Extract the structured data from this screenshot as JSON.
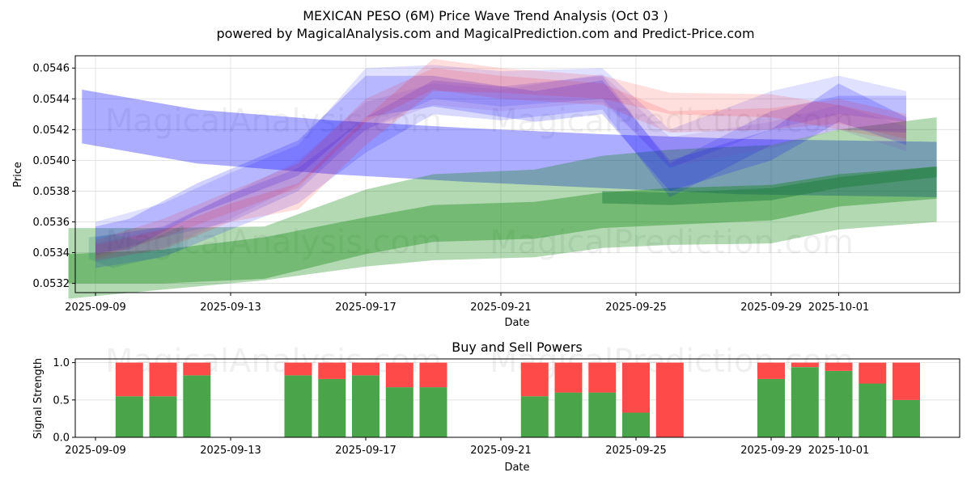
{
  "chart_data": [
    {
      "type": "area",
      "title": "MEXICAN PESO (6M) Price Wave Trend Analysis (Oct 03 )",
      "subtitle": "powered by MagicalAnalysis.com and MagicalPrediction.com and Predict-Price.com",
      "xlabel": "Date",
      "ylabel": "Price",
      "ylim": [
        0.05314,
        0.05468
      ],
      "x_ticks": [
        "2025-09-09",
        "2025-09-13",
        "2025-09-17",
        "2025-09-21",
        "2025-09-25",
        "2025-09-29",
        "2025-10-01"
      ],
      "y_ticks": [
        "0.0532",
        "0.0534",
        "0.0536",
        "0.0538",
        "0.0540",
        "0.0542",
        "0.0544",
        "0.0546"
      ],
      "grid": true,
      "watermarks": [
        "MagicalAnalysis.com",
        "MagicalPrediction.com"
      ],
      "bands": [
        {
          "name": "long-term-blue-band",
          "color": "#0000ff",
          "opacity": 0.32,
          "x": [
            "2025-09-08.6",
            "2025-09-12",
            "2025-09-16",
            "2025-09-20",
            "2025-09-24",
            "2025-09-28",
            "2025-10-03.9"
          ],
          "upper": [
            0.05446,
            0.05433,
            0.05426,
            0.05421,
            0.05417,
            0.05414,
            0.05412
          ],
          "lower": [
            0.05411,
            0.05398,
            0.05391,
            0.05386,
            0.05382,
            0.05378,
            0.05376
          ]
        },
        {
          "name": "outer-green-band",
          "color": "#008000",
          "opacity": 0.3,
          "x": [
            "2025-09-08.2",
            "2025-09-11",
            "2025-09-14",
            "2025-09-17",
            "2025-09-19",
            "2025-09-22",
            "2025-09-24",
            "2025-09-26",
            "2025-09-29",
            "2025-10-01",
            "2025-10-03.9"
          ],
          "upper": [
            0.05356,
            0.05356,
            0.05357,
            0.05381,
            0.05391,
            0.05394,
            0.05403,
            0.05407,
            0.0541,
            0.0542,
            0.05428
          ],
          "lower": [
            0.0531,
            0.05316,
            0.05322,
            0.05331,
            0.05335,
            0.05337,
            0.05343,
            0.05345,
            0.05346,
            0.05355,
            0.0536
          ]
        },
        {
          "name": "inner-green-band",
          "color": "#008000",
          "opacity": 0.35,
          "x": [
            "2025-09-08.2",
            "2025-09-11",
            "2025-09-14",
            "2025-09-17",
            "2025-09-19",
            "2025-09-22",
            "2025-09-24",
            "2025-09-26",
            "2025-09-29",
            "2025-10-01",
            "2025-10-03.9"
          ],
          "upper": [
            0.05339,
            0.05342,
            0.0535,
            0.05363,
            0.05371,
            0.05373,
            0.05379,
            0.05382,
            0.05384,
            0.05391,
            0.05396
          ],
          "lower": [
            0.0532,
            0.0532,
            0.05323,
            0.05339,
            0.05347,
            0.05349,
            0.05356,
            0.05358,
            0.05361,
            0.0537,
            0.05375
          ]
        },
        {
          "name": "dark-green-core-band",
          "color": "#1a7a3a",
          "opacity": 0.45,
          "x": [
            "2025-09-24",
            "2025-09-26",
            "2025-09-29",
            "2025-10-01",
            "2025-10-03.9"
          ],
          "upper": [
            0.0538,
            0.05379,
            0.05382,
            0.05389,
            0.05396
          ],
          "lower": [
            0.05372,
            0.05371,
            0.05374,
            0.05382,
            0.05389
          ]
        },
        {
          "name": "blue-wave-1",
          "color": "#0000ff",
          "opacity": 0.18,
          "x": [
            "2025-09-09",
            "2025-09-10",
            "2025-09-12",
            "2025-09-15",
            "2025-09-17",
            "2025-09-19",
            "2025-09-22",
            "2025-09-24",
            "2025-09-26",
            "2025-09-29",
            "2025-10-01",
            "2025-10-03"
          ],
          "upper": [
            0.05357,
            0.05362,
            0.05385,
            0.05413,
            0.05455,
            0.05455,
            0.05445,
            0.05452,
            0.054,
            0.0542,
            0.0545,
            0.05428
          ],
          "lower": [
            0.0534,
            0.05342,
            0.05365,
            0.0539,
            0.05428,
            0.05435,
            0.05425,
            0.0543,
            0.0538,
            0.054,
            0.05425,
            0.0541
          ]
        },
        {
          "name": "blue-wave-2",
          "color": "#0000ff",
          "opacity": 0.15,
          "x": [
            "2025-09-09",
            "2025-09-11",
            "2025-09-13",
            "2025-09-15",
            "2025-09-17",
            "2025-09-19",
            "2025-09-21",
            "2025-09-24",
            "2025-09-26",
            "2025-09-29",
            "2025-10-01",
            "2025-10-03"
          ],
          "upper": [
            0.0535,
            0.05357,
            0.05378,
            0.05395,
            0.05428,
            0.05452,
            0.05448,
            0.05455,
            0.05398,
            0.05432,
            0.05442,
            0.05442
          ],
          "lower": [
            0.0533,
            0.05337,
            0.05355,
            0.05372,
            0.05405,
            0.0543,
            0.05426,
            0.05433,
            0.05376,
            0.0541,
            0.0542,
            0.05418
          ]
        },
        {
          "name": "blue-wave-3",
          "color": "#0000ff",
          "opacity": 0.12,
          "x": [
            "2025-09-09",
            "2025-09-11",
            "2025-09-13",
            "2025-09-15",
            "2025-09-17",
            "2025-09-19",
            "2025-09-21",
            "2025-09-24",
            "2025-09-26",
            "2025-09-29",
            "2025-10-01",
            "2025-10-03"
          ],
          "upper": [
            0.0536,
            0.05372,
            0.05392,
            0.0541,
            0.0546,
            0.05462,
            0.05458,
            0.0546,
            0.0542,
            0.05445,
            0.05455,
            0.05445
          ],
          "lower": [
            0.05338,
            0.0535,
            0.0536,
            0.0538,
            0.0542,
            0.0544,
            0.05435,
            0.0544,
            0.05395,
            0.0542,
            0.0543,
            0.05425
          ]
        },
        {
          "name": "red-wave-1",
          "color": "#ff0000",
          "opacity": 0.13,
          "x": [
            "2025-09-09",
            "2025-09-11",
            "2025-09-13",
            "2025-09-15",
            "2025-09-17",
            "2025-09-19",
            "2025-09-21",
            "2025-09-24",
            "2025-09-26",
            "2025-09-29",
            "2025-10-01",
            "2025-10-03"
          ],
          "upper": [
            0.05345,
            0.05355,
            0.05372,
            0.05385,
            0.05428,
            0.05466,
            0.0546,
            0.05455,
            0.05444,
            0.05443,
            0.05436,
            0.05426
          ],
          "lower": [
            0.05335,
            0.05342,
            0.0536,
            0.05368,
            0.0541,
            0.05445,
            0.05444,
            0.0544,
            0.0543,
            0.05428,
            0.0542,
            0.05412
          ]
        },
        {
          "name": "red-wave-2",
          "color": "#ff0000",
          "opacity": 0.12,
          "x": [
            "2025-09-09",
            "2025-09-11",
            "2025-09-13",
            "2025-09-15",
            "2025-09-17",
            "2025-09-19",
            "2025-09-21",
            "2025-09-24",
            "2025-09-26",
            "2025-09-29",
            "2025-10-01",
            "2025-10-03"
          ],
          "upper": [
            0.05348,
            0.05362,
            0.0538,
            0.05398,
            0.0544,
            0.0546,
            0.05455,
            0.0545,
            0.05432,
            0.05434,
            0.0544,
            0.0543
          ],
          "lower": [
            0.05336,
            0.0535,
            0.05366,
            0.05382,
            0.05425,
            0.05446,
            0.0544,
            0.05436,
            0.05418,
            0.0542,
            0.05424,
            0.05414
          ]
        },
        {
          "name": "purple-wave",
          "color": "#8040c0",
          "opacity": 0.14,
          "x": [
            "2025-09-09",
            "2025-09-11",
            "2025-09-13",
            "2025-09-15",
            "2025-09-17",
            "2025-09-19",
            "2025-09-21",
            "2025-09-24",
            "2025-09-26",
            "2025-09-29",
            "2025-10-01",
            "2025-10-03"
          ],
          "upper": [
            0.05346,
            0.05356,
            0.05378,
            0.054,
            0.05438,
            0.0545,
            0.05446,
            0.05456,
            0.05415,
            0.05425,
            0.05436,
            0.05422
          ],
          "lower": [
            0.05334,
            0.05343,
            0.05362,
            0.05384,
            0.0542,
            0.05436,
            0.05432,
            0.05438,
            0.05396,
            0.05408,
            0.0542,
            0.05406
          ]
        },
        {
          "name": "teal-cluster-start",
          "color": "#2a7a7a",
          "opacity": 0.2,
          "x": [
            "2025-09-08.8",
            "2025-09-09.5",
            "2025-09-10.3",
            "2025-09-11",
            "2025-09-11.6"
          ],
          "upper": [
            0.0535,
            0.05352,
            0.05348,
            0.05352,
            0.05358
          ],
          "lower": [
            0.05336,
            0.0533,
            0.05334,
            0.05338,
            0.05342
          ]
        }
      ]
    },
    {
      "type": "bar",
      "title": "Buy and Sell Powers",
      "xlabel": "Date",
      "ylabel": "Signal Strength",
      "ylim": [
        0,
        1.05
      ],
      "y_ticks": [
        "0.0",
        "0.5",
        "1.0"
      ],
      "x_ticks": [
        "2025-09-09",
        "2025-09-13",
        "2025-09-17",
        "2025-09-21",
        "2025-09-25",
        "2025-09-29",
        "2025-10-01"
      ],
      "stacked": true,
      "categories": [
        "2025-09-10",
        "2025-09-11",
        "2025-09-12",
        "2025-09-15",
        "2025-09-16",
        "2025-09-17",
        "2025-09-18",
        "2025-09-19",
        "2025-09-22",
        "2025-09-23",
        "2025-09-24",
        "2025-09-25",
        "2025-09-26",
        "2025-09-29",
        "2025-09-30",
        "2025-10-01",
        "2025-10-02",
        "2025-10-03"
      ],
      "series": [
        {
          "name": "Buy",
          "color": "#4aa54a",
          "values": [
            0.55,
            0.55,
            0.83,
            0.83,
            0.78,
            0.83,
            0.67,
            0.67,
            0.55,
            0.6,
            0.6,
            0.33,
            0.0,
            0.78,
            0.94,
            0.89,
            0.72,
            0.5
          ]
        },
        {
          "name": "Sell",
          "color": "#ff4a4a",
          "values": [
            0.45,
            0.45,
            0.17,
            0.17,
            0.22,
            0.17,
            0.33,
            0.33,
            0.45,
            0.4,
            0.4,
            0.67,
            1.0,
            0.22,
            0.06,
            0.11,
            0.28,
            0.5
          ]
        }
      ],
      "watermarks": [
        "MagicalAnalysis.com",
        "MagicalPrediction.com"
      ]
    }
  ]
}
